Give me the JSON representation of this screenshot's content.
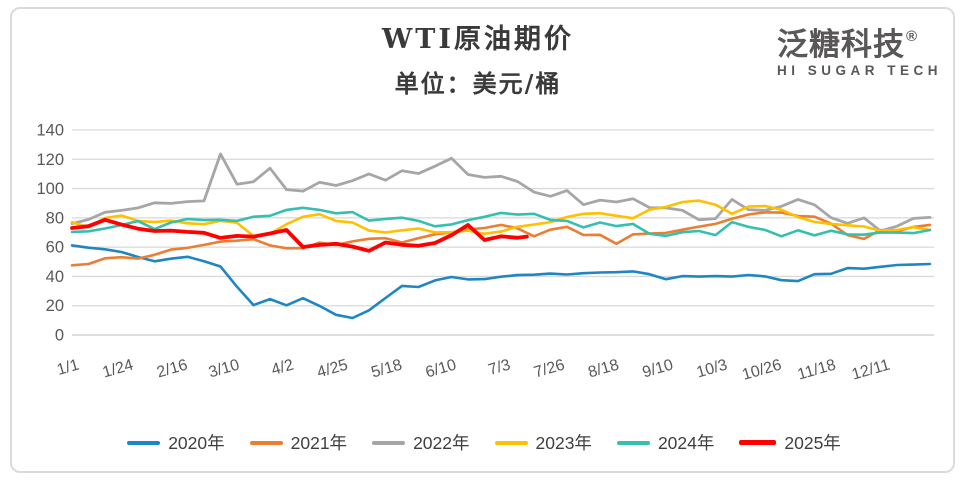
{
  "header": {
    "title": "WTI原油期价",
    "subtitle": "单位：美元/桶"
  },
  "logo": {
    "brand": "泛糖科技",
    "registered": "®",
    "tagline": "HI SUGAR TECH"
  },
  "colors": {
    "grid": "#D9D9D9",
    "baseline": "#C9C9C9",
    "axis_text": "#595959",
    "title_text": "#3A3A3A",
    "logo_text": "#595757",
    "frame": "#DBDBDB",
    "legend_text": "#3F3F3F"
  },
  "chart_data": {
    "type": "line",
    "title": "WTI原油期价",
    "subtitle": "单位：美元/桶",
    "xlabel": "",
    "ylabel": "",
    "ylim": [
      0,
      140
    ],
    "y_ticks": [
      0,
      20,
      40,
      60,
      80,
      100,
      120,
      140
    ],
    "grid": "horizontal-only",
    "legend_position": "bottom",
    "x_tick_labels": [
      "1/1",
      "1/24",
      "2/16",
      "3/10",
      "4/2",
      "4/25",
      "5/18",
      "6/10",
      "7/3",
      "7/26",
      "8/18",
      "9/10",
      "10/3",
      "10/26",
      "11/18",
      "12/11"
    ],
    "x_tick_days": [
      1,
      24,
      47,
      69,
      92,
      115,
      138,
      161,
      184,
      207,
      230,
      253,
      276,
      299,
      322,
      345
    ],
    "x_days": [
      1,
      8,
      15,
      22,
      29,
      36,
      43,
      50,
      57,
      64,
      71,
      78,
      85,
      92,
      99,
      106,
      113,
      120,
      127,
      134,
      141,
      148,
      155,
      162,
      169,
      176,
      183,
      190,
      197,
      204,
      211,
      218,
      225,
      232,
      239,
      246,
      253,
      260,
      267,
      274,
      281,
      288,
      295,
      302,
      309,
      316,
      323,
      330,
      337,
      344,
      351,
      358,
      365
    ],
    "series": [
      {
        "name": "2020年",
        "color": "#1F86C4",
        "width": 2.6,
        "values": [
          61.2,
          59.6,
          58.5,
          56.7,
          53.3,
          50.3,
          52.1,
          53.4,
          50.4,
          46.8,
          32.9,
          20.4,
          24.5,
          20.3,
          25.1,
          19.9,
          13.8,
          11.6,
          16.9,
          25.3,
          33.5,
          32.8,
          37.3,
          39.6,
          38.0,
          38.2,
          39.8,
          40.9,
          41.2,
          41.9,
          41.3,
          42.2,
          42.7,
          42.9,
          43.4,
          41.5,
          38.1,
          40.2,
          39.9,
          40.2,
          39.9,
          41.0,
          40.0,
          37.4,
          36.8,
          41.5,
          41.8,
          45.7,
          45.3,
          46.6,
          47.8,
          48.1,
          48.5
        ]
      },
      {
        "name": "2021年",
        "color": "#ED7D31",
        "width": 2.6,
        "values": [
          47.6,
          48.5,
          52.4,
          53.1,
          52.2,
          54.8,
          58.3,
          59.5,
          61.5,
          63.8,
          64.4,
          65.4,
          61.2,
          59.2,
          59.3,
          63.1,
          61.4,
          63.9,
          65.7,
          66.1,
          63.2,
          66.2,
          68.8,
          70.0,
          72.1,
          73.1,
          75.2,
          72.9,
          67.4,
          72.0,
          73.9,
          68.3,
          68.4,
          62.3,
          68.7,
          69.3,
          69.7,
          71.9,
          74.0,
          75.9,
          79.4,
          82.3,
          83.8,
          83.6,
          81.3,
          80.8,
          76.1,
          68.2,
          65.6,
          71.7,
          70.9,
          73.8,
          75.2
        ]
      },
      {
        "name": "2022年",
        "color": "#A6A6A6",
        "width": 2.8,
        "values": [
          76.1,
          78.9,
          83.8,
          85.1,
          86.8,
          90.3,
          89.9,
          91.1,
          91.6,
          123.7,
          103.0,
          104.7,
          113.9,
          99.3,
          98.3,
          104.3,
          102.1,
          105.4,
          110.0,
          105.7,
          112.2,
          110.3,
          115.3,
          120.7,
          109.6,
          107.6,
          108.4,
          104.8,
          97.6,
          94.7,
          98.6,
          89.0,
          92.1,
          90.8,
          93.1,
          87.0,
          86.8,
          85.1,
          78.7,
          79.5,
          92.6,
          85.6,
          85.1,
          87.9,
          92.6,
          88.9,
          80.1,
          76.3,
          80.0,
          71.0,
          74.3,
          79.6,
          80.3
        ]
      },
      {
        "name": "2023年",
        "color": "#FFC000",
        "width": 2.6,
        "values": [
          77.0,
          73.7,
          79.9,
          81.6,
          77.9,
          77.1,
          78.1,
          76.3,
          75.7,
          78.0,
          76.7,
          67.6,
          69.2,
          75.7,
          80.7,
          82.5,
          77.9,
          76.8,
          71.3,
          70.0,
          71.5,
          72.7,
          70.1,
          70.2,
          71.3,
          69.2,
          70.6,
          73.9,
          75.4,
          77.1,
          80.6,
          82.8,
          83.2,
          81.4,
          79.8,
          85.6,
          87.5,
          90.8,
          91.8,
          89.0,
          82.8,
          87.7,
          88.1,
          85.5,
          80.5,
          77.2,
          75.9,
          74.9,
          74.1,
          71.2,
          71.8,
          73.6,
          71.7
        ]
      },
      {
        "name": "2024年",
        "color": "#35BFAF",
        "width": 2.6,
        "values": [
          70.4,
          70.8,
          72.7,
          75.1,
          77.8,
          72.3,
          76.8,
          79.2,
          78.5,
          78.7,
          77.9,
          80.8,
          81.4,
          85.4,
          86.9,
          85.4,
          83.1,
          83.9,
          78.1,
          79.3,
          80.1,
          77.9,
          74.2,
          75.5,
          78.5,
          80.7,
          83.4,
          82.2,
          82.8,
          78.6,
          77.9,
          73.5,
          76.8,
          74.4,
          75.9,
          69.2,
          67.7,
          70.2,
          71.0,
          68.2,
          77.1,
          73.8,
          71.8,
          67.4,
          71.5,
          68.0,
          71.2,
          68.7,
          68.5,
          70.1,
          69.9,
          69.6,
          71.7
        ]
      },
      {
        "name": "2025年",
        "color": "#FF0000",
        "width": 3.8,
        "x": [
          1,
          8,
          15,
          22,
          29,
          36,
          43,
          50,
          57,
          64,
          71,
          78,
          85,
          92,
          99,
          106,
          113,
          120,
          127,
          134,
          141,
          148,
          155,
          162,
          169,
          176,
          183,
          190,
          194
        ],
        "values": [
          73.1,
          74.3,
          78.7,
          75.4,
          72.6,
          71.0,
          71.3,
          70.4,
          69.8,
          66.3,
          67.7,
          67.2,
          69.3,
          71.7,
          60.1,
          61.5,
          62.3,
          60.4,
          57.5,
          63.2,
          61.6,
          60.9,
          62.8,
          68.2,
          75.1,
          64.9,
          67.4,
          66.4,
          67.2
        ]
      }
    ]
  }
}
